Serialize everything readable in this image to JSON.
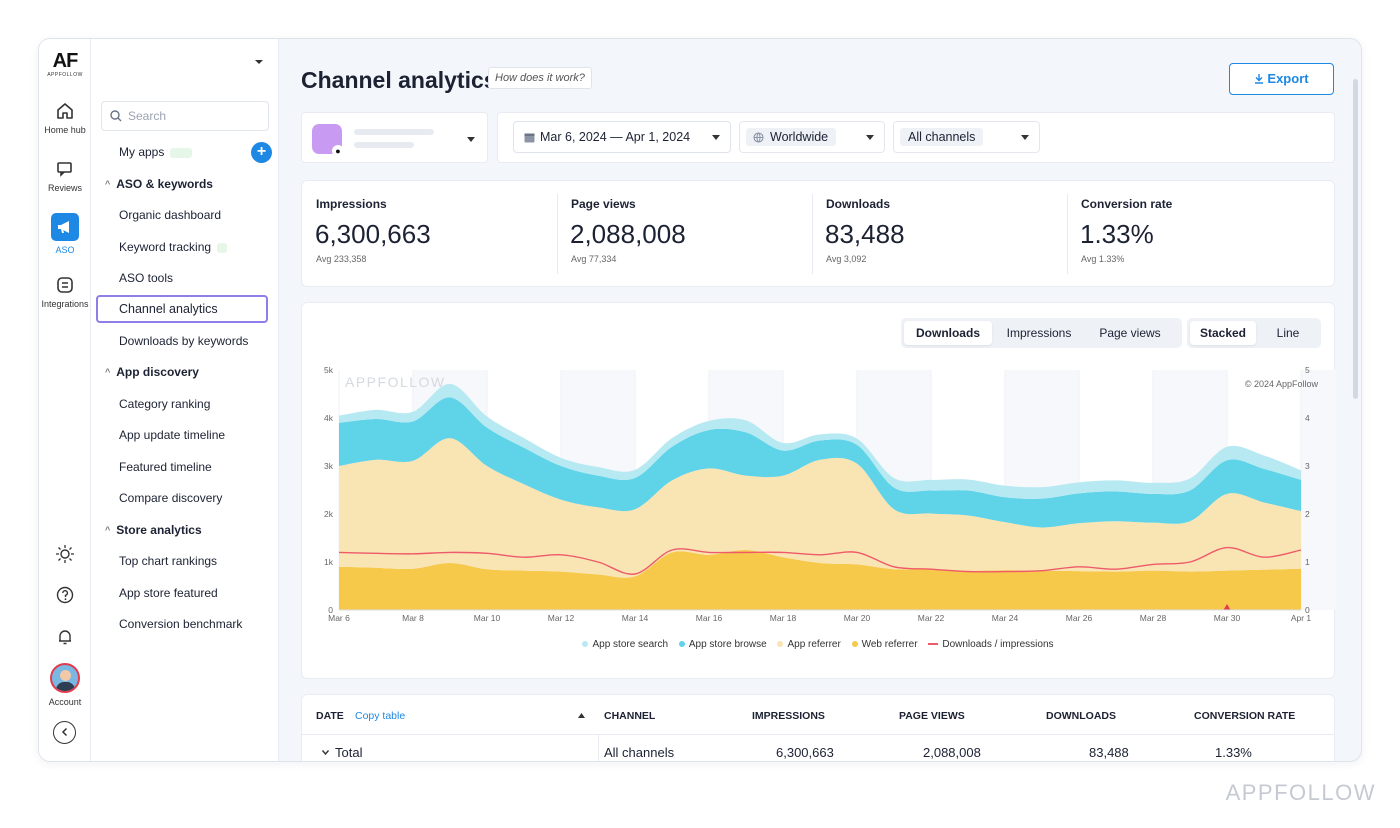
{
  "brand": {
    "logo_big": "AF",
    "logo_small": "APPFOLLOW",
    "watermark": "APPFOLLOW"
  },
  "rail": {
    "items": [
      {
        "label": "Home hub"
      },
      {
        "label": "Reviews"
      },
      {
        "label": "ASO"
      },
      {
        "label": "Integrations"
      }
    ],
    "account_label": "Account"
  },
  "menu": {
    "search_placeholder": "Search",
    "my_apps": "My apps",
    "sections": [
      {
        "title": "ASO & keywords",
        "items": [
          "Organic dashboard",
          "Keyword tracking",
          "ASO tools",
          "Channel analytics",
          "Downloads by keywords"
        ]
      },
      {
        "title": "App discovery",
        "items": [
          "Category ranking",
          "App update timeline",
          "Featured timeline",
          "Compare discovery"
        ]
      },
      {
        "title": "Store analytics",
        "items": [
          "Top chart rankings",
          "App store featured",
          "Conversion benchmark"
        ]
      }
    ],
    "selected": "Channel analytics"
  },
  "header": {
    "title": "Channel analytics",
    "how_link": "How does it work?",
    "export_label": "Export"
  },
  "filters": {
    "date_range": "Mar 6, 2024 — Apr 1, 2024",
    "region": "Worldwide",
    "channel": "All channels"
  },
  "metrics": [
    {
      "label": "Impressions",
      "value": "6,300,663",
      "avg": "Avg 233,358"
    },
    {
      "label": "Page views",
      "value": "2,088,008",
      "avg": "Avg 77,334"
    },
    {
      "label": "Downloads",
      "value": "83,488",
      "avg": "Avg 3,092"
    },
    {
      "label": "Conversion rate",
      "value": "1.33%",
      "avg": "Avg 1.33%"
    }
  ],
  "chart_controls": {
    "metric_tabs": [
      "Downloads",
      "Impressions",
      "Page views"
    ],
    "active_metric": "Downloads",
    "mode_tabs": [
      "Stacked",
      "Line"
    ],
    "active_mode": "Stacked"
  },
  "chart_watermark": "APPFOLLOW",
  "chart_copyright": "© 2024 AppFollow",
  "colors": {
    "search": "#b7e9f2",
    "browse": "#5fd3e8",
    "referrer": "#f9e4b3",
    "web": "#f6c94a",
    "ratio": "#ee5a6a",
    "accent": "#1e88e5"
  },
  "chart_data": {
    "type": "area",
    "stacked": true,
    "x": [
      "Mar 6",
      "Mar 7",
      "Mar 8",
      "Mar 9",
      "Mar 10",
      "Mar 11",
      "Mar 12",
      "Mar 13",
      "Mar 14",
      "Mar 15",
      "Mar 16",
      "Mar 17",
      "Mar 18",
      "Mar 19",
      "Mar 20",
      "Mar 21",
      "Mar 22",
      "Mar 23",
      "Mar 24",
      "Mar 25",
      "Mar 26",
      "Mar 27",
      "Mar 28",
      "Mar 29",
      "Mar 30",
      "Mar 31",
      "Apr 1"
    ],
    "x_tick_labels": [
      "Mar 6",
      "Mar 8",
      "Mar 10",
      "Mar 12",
      "Mar 14",
      "Mar 16",
      "Mar 18",
      "Mar 20",
      "Mar 22",
      "Mar 24",
      "Mar 26",
      "Mar 28",
      "Mar 30",
      "Apr 1"
    ],
    "y_left_ticks": [
      "0",
      "1k",
      "2k",
      "3k",
      "4k",
      "5k"
    ],
    "y_right_ticks": [
      "0",
      "1",
      "2",
      "3",
      "4",
      "5"
    ],
    "ylim": [
      0,
      5000
    ],
    "series": [
      {
        "name": "Web referrer",
        "values": [
          900,
          880,
          860,
          980,
          850,
          820,
          800,
          740,
          700,
          1200,
          1150,
          1250,
          1100,
          980,
          950,
          850,
          860,
          820,
          830,
          820,
          810,
          800,
          820,
          800,
          820,
          840,
          860
        ]
      },
      {
        "name": "App referrer",
        "values": [
          2100,
          2250,
          2250,
          2600,
          2150,
          1800,
          1500,
          1400,
          1400,
          1500,
          1800,
          1550,
          1700,
          2150,
          2100,
          1250,
          1150,
          1150,
          1000,
          900,
          1000,
          1050,
          1000,
          1050,
          1600,
          1400,
          1200
        ]
      },
      {
        "name": "App store browse",
        "values": [
          900,
          850,
          820,
          850,
          800,
          760,
          700,
          660,
          650,
          700,
          800,
          900,
          520,
          400,
          390,
          450,
          480,
          520,
          520,
          600,
          620,
          620,
          600,
          640,
          700,
          700,
          650
        ]
      },
      {
        "name": "App store search",
        "values": [
          150,
          190,
          200,
          280,
          230,
          200,
          170,
          180,
          170,
          180,
          190,
          250,
          160,
          130,
          130,
          200,
          220,
          230,
          240,
          240,
          230,
          230,
          230,
          250,
          280,
          280,
          200
        ]
      }
    ],
    "line_series": {
      "name": "Downloads / impressions",
      "axis": "right",
      "values": [
        1.2,
        1.18,
        1.17,
        1.2,
        1.18,
        1.1,
        1.15,
        1.0,
        0.75,
        1.25,
        1.2,
        1.2,
        1.2,
        1.15,
        1.2,
        0.9,
        0.85,
        0.8,
        0.8,
        0.82,
        0.9,
        0.85,
        0.95,
        1.0,
        1.3,
        1.1,
        1.25
      ]
    },
    "legend": [
      "App store search",
      "App store browse",
      "App referrer",
      "Web referrer",
      "Downloads / impressions"
    ]
  },
  "table": {
    "headers": {
      "date": "DATE",
      "copy": "Copy table",
      "channel": "CHANNEL",
      "impressions": "IMPRESSIONS",
      "page_views": "PAGE VIEWS",
      "downloads": "DOWNLOADS",
      "conversion": "CONVERSION RATE"
    },
    "row": {
      "date": "Total",
      "channel": "All channels",
      "impressions": "6,300,663",
      "page_views": "2,088,008",
      "downloads": "83,488",
      "conversion": "1.33%"
    }
  }
}
